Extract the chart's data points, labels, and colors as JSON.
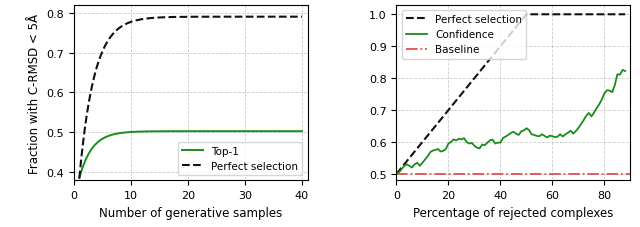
{
  "left": {
    "xlabel": "Number of generative samples",
    "ylabel": "Fraction with C-RMSD < 5Å",
    "xlim": [
      0,
      41
    ],
    "ylim": [
      0.38,
      0.82
    ],
    "yticks": [
      0.4,
      0.5,
      0.6,
      0.7,
      0.8
    ],
    "xticks": [
      0,
      10,
      20,
      30,
      40
    ],
    "top1_color": "#1a8c1a",
    "perfect_color": "#111111",
    "legend_labels": [
      "Top-1",
      "Perfect selection"
    ]
  },
  "right": {
    "xlabel": "Percentage of rejected complexes",
    "xlim": [
      0,
      90
    ],
    "ylim": [
      0.48,
      1.03
    ],
    "yticks": [
      0.5,
      0.6,
      0.7,
      0.8,
      0.9,
      1.0
    ],
    "xticks": [
      0,
      20,
      40,
      60,
      80
    ],
    "perfect_color": "#111111",
    "confidence_color": "#1a8c1a",
    "baseline_color": "#e05050",
    "baseline_value": 0.5,
    "legend_labels": [
      "Perfect selection",
      "Confidence",
      "Baseline"
    ]
  }
}
